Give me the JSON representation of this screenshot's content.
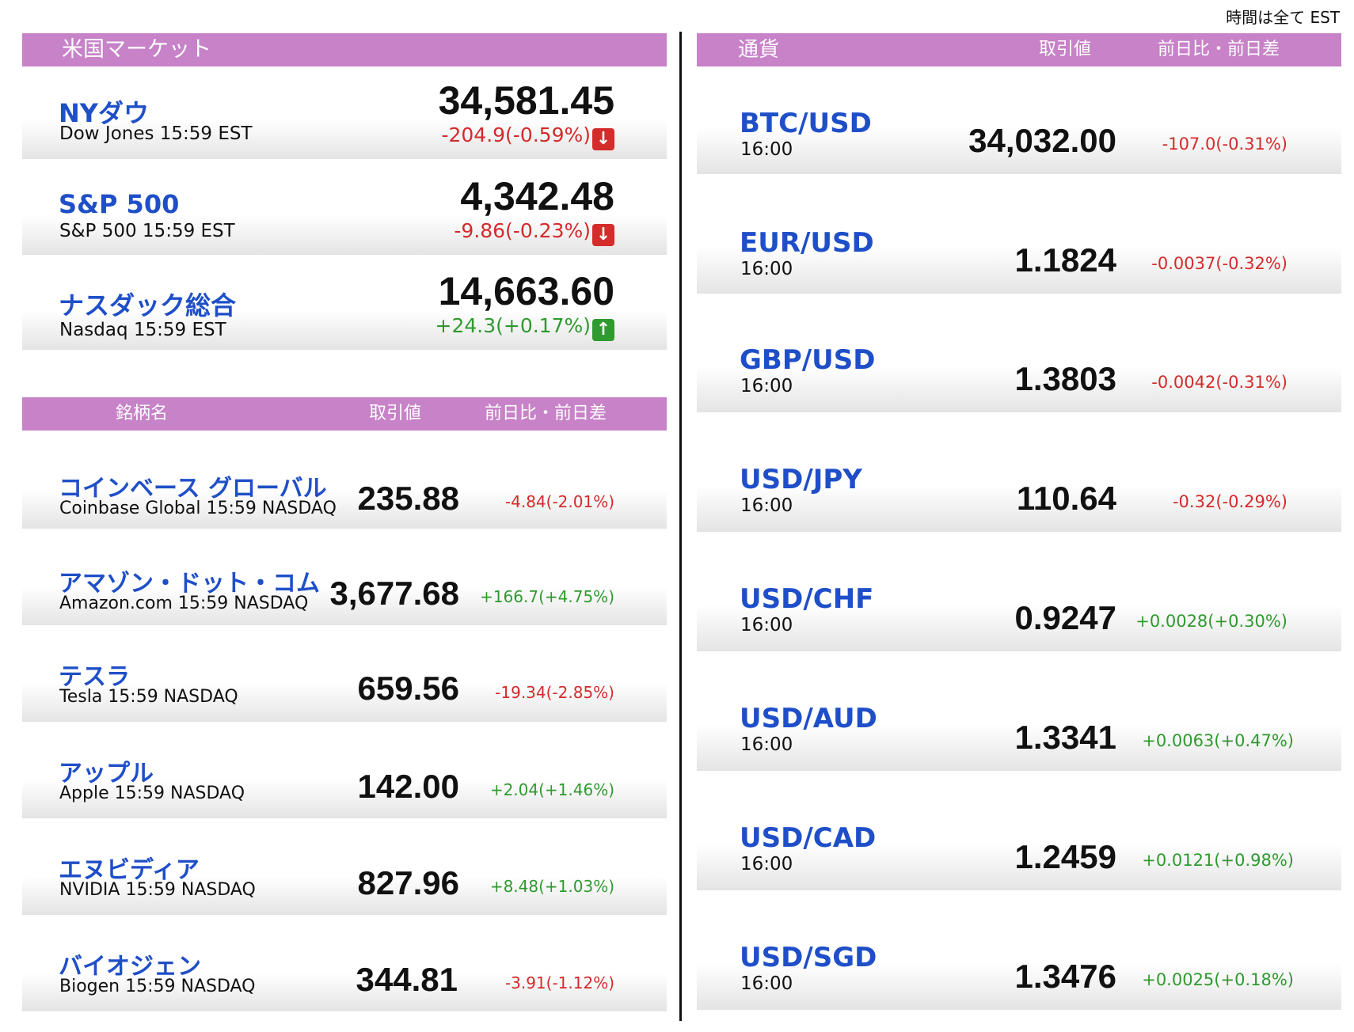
{
  "timezone_note": "時間は全て EST",
  "us_market": {
    "header": "米国マーケット",
    "indices": [
      {
        "name": "NYダウ",
        "sub": "Dow Jones 15:59 EST",
        "value": "34,581.45",
        "change": "-204.9(-0.59%)",
        "dir": "down"
      },
      {
        "name": "S&P 500",
        "sub": "S&P 500 15:59 EST",
        "value": "4,342.48",
        "change": "-9.86(-0.23%)",
        "dir": "down"
      },
      {
        "name": "ナスダック総合",
        "sub": "Nasdaq 15:59 EST",
        "value": "14,663.60",
        "change": "+24.3(+0.17%)",
        "dir": "up"
      }
    ]
  },
  "stocks": {
    "header": {
      "name": "銘柄名",
      "price": "取引値",
      "change": "前日比・前日差"
    },
    "rows": [
      {
        "name": "コインベース グローバル",
        "sub": "Coinbase Global 15:59  NASDAQ",
        "value": "235.88",
        "change": "-4.84(-2.01%)",
        "dir": "down"
      },
      {
        "name": "アマゾン・ドット・コム",
        "sub": "Amazon.com 15:59  NASDAQ",
        "value": "3,677.68",
        "change": "+166.7(+4.75%)",
        "dir": "up"
      },
      {
        "name": "テスラ",
        "sub": "Tesla 15:59  NASDAQ",
        "value": "659.56",
        "change": "-19.34(-2.85%)",
        "dir": "down"
      },
      {
        "name": "アップル",
        "sub": "Apple 15:59  NASDAQ",
        "value": "142.00",
        "change": "+2.04(+1.46%)",
        "dir": "up"
      },
      {
        "name": "エヌビディア",
        "sub": "NVIDIA 15:59  NASDAQ",
        "value": "827.96",
        "change": "+8.48(+1.03%)",
        "dir": "up"
      },
      {
        "name": "バイオジェン",
        "sub": "Biogen 15:59  NASDAQ",
        "value": "344.81",
        "change": "-3.91(-1.12%)",
        "dir": "down"
      }
    ]
  },
  "currencies": {
    "header": {
      "name": "通貨",
      "price": "取引値",
      "change": "前日比・前日差"
    },
    "rows": [
      {
        "pair": "BTC/USD",
        "time": "16:00",
        "value": "34,032.00",
        "change": "-107.0(-0.31%)",
        "dir": "down"
      },
      {
        "pair": "EUR/USD",
        "time": "16:00",
        "value": "1.1824",
        "change": "-0.0037(-0.32%)",
        "dir": "down"
      },
      {
        "pair": "GBP/USD",
        "time": "16:00",
        "value": "1.3803",
        "change": "-0.0042(-0.31%)",
        "dir": "down"
      },
      {
        "pair": "USD/JPY",
        "time": "16:00",
        "value": "110.64",
        "change": "-0.32(-0.29%)",
        "dir": "down"
      },
      {
        "pair": "USD/CHF",
        "time": "16:00",
        "value": "0.9247",
        "change": "+0.0028(+0.30%)",
        "dir": "up"
      },
      {
        "pair": "USD/AUD",
        "time": "16:00",
        "value": "1.3341",
        "change": "+0.0063(+0.47%)",
        "dir": "up"
      },
      {
        "pair": "USD/CAD",
        "time": "16:00",
        "value": "1.2459",
        "change": "+0.0121(+0.98%)",
        "dir": "up"
      },
      {
        "pair": "USD/SGD",
        "time": "16:00",
        "value": "1.3476",
        "change": "+0.0025(+0.18%)",
        "dir": "up"
      }
    ]
  },
  "colors": {
    "header_bg": "#c782c8",
    "name_blue": "#1f4fc8",
    "down_red": "#d42b2b",
    "up_green": "#2f9a2f"
  }
}
